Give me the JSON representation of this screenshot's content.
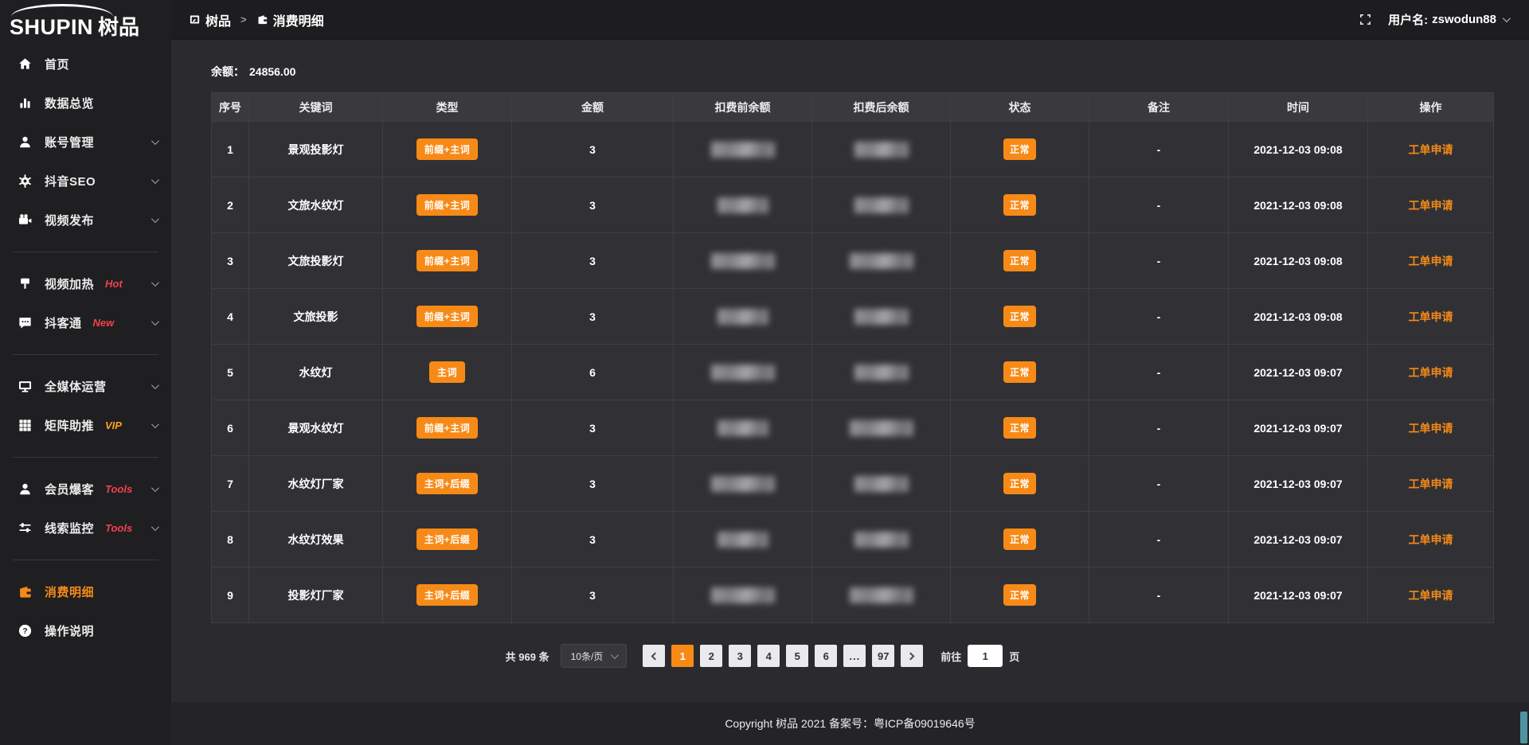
{
  "app": {
    "logo_text": "SHUPIN",
    "logo_cn": "树品"
  },
  "topbar": {
    "breadcrumb": [
      {
        "label": "树品",
        "icon": "dashboard"
      },
      {
        "label": "消费明细",
        "icon": "wallet"
      }
    ],
    "separator": ">",
    "fullscreen_icon": "fullscreen",
    "username_label": "用户名:",
    "username": "zswodun88"
  },
  "sidebar": {
    "items": [
      {
        "id": "home",
        "label": "首页",
        "icon": "home"
      },
      {
        "id": "data-overview",
        "label": "数据总览",
        "icon": "chart"
      },
      {
        "id": "account-manage",
        "label": "账号管理",
        "icon": "user",
        "chevron": true
      },
      {
        "id": "douyin-seo",
        "label": "抖音SEO",
        "icon": "gear",
        "chevron": true
      },
      {
        "id": "video-publish",
        "label": "视频发布",
        "icon": "video",
        "chevron": true
      },
      {
        "divider": true
      },
      {
        "id": "video-heat",
        "label": "视频加热",
        "icon": "plug",
        "badge": "Hot",
        "badge_color": "#f4404a",
        "chevron": true
      },
      {
        "id": "doukertong",
        "label": "抖客通",
        "icon": "chat",
        "badge": "New",
        "badge_color": "#f4404a",
        "chevron": true
      },
      {
        "divider": true
      },
      {
        "id": "media-operation",
        "label": "全媒体运营",
        "icon": "monitor",
        "chevron": true
      },
      {
        "id": "matrix-boost",
        "label": "矩阵助推",
        "icon": "grid",
        "badge": "VIP",
        "badge_color": "#f7a21b",
        "chevron": true
      },
      {
        "divider": true
      },
      {
        "id": "member-baoke",
        "label": "会员爆客",
        "icon": "user",
        "badge": "Tools",
        "badge_color": "#f4404a",
        "chevron": true
      },
      {
        "id": "lead-monitor",
        "label": "线索监控",
        "icon": "sliders",
        "badge": "Tools",
        "badge_color": "#f4404a",
        "chevron": true
      },
      {
        "divider": true
      },
      {
        "id": "consume-detail",
        "label": "消费明细",
        "icon": "wallet",
        "active": true
      },
      {
        "id": "operation-guide",
        "label": "操作说明",
        "icon": "question"
      }
    ]
  },
  "main": {
    "balance_label": "余额：",
    "balance_value": "24856.00",
    "table": {
      "columns": [
        "序号",
        "关键词",
        "类型",
        "金额",
        "扣费前余额",
        "扣费后余额",
        "状态",
        "备注",
        "时间",
        "操作"
      ],
      "masked_columns": [
        "扣费前余额",
        "扣费后余额"
      ],
      "rows": [
        {
          "no": "1",
          "keyword": "景观投影灯",
          "type": "前缀+主词",
          "amount": "3",
          "status": "正常",
          "remark": "-",
          "time": "2021-12-03 09:08",
          "action": "工单申请"
        },
        {
          "no": "2",
          "keyword": "文旅水纹灯",
          "type": "前缀+主词",
          "amount": "3",
          "status": "正常",
          "remark": "-",
          "time": "2021-12-03 09:08",
          "action": "工单申请"
        },
        {
          "no": "3",
          "keyword": "文旅投影灯",
          "type": "前缀+主词",
          "amount": "3",
          "status": "正常",
          "remark": "-",
          "time": "2021-12-03 09:08",
          "action": "工单申请"
        },
        {
          "no": "4",
          "keyword": "文旅投影",
          "type": "前缀+主词",
          "amount": "3",
          "status": "正常",
          "remark": "-",
          "time": "2021-12-03 09:08",
          "action": "工单申请"
        },
        {
          "no": "5",
          "keyword": "水纹灯",
          "type": "主词",
          "amount": "6",
          "status": "正常",
          "remark": "-",
          "time": "2021-12-03 09:07",
          "action": "工单申请"
        },
        {
          "no": "6",
          "keyword": "景观水纹灯",
          "type": "前缀+主词",
          "amount": "3",
          "status": "正常",
          "remark": "-",
          "time": "2021-12-03 09:07",
          "action": "工单申请"
        },
        {
          "no": "7",
          "keyword": "水纹灯厂家",
          "type": "主词+后缀",
          "amount": "3",
          "status": "正常",
          "remark": "-",
          "time": "2021-12-03 09:07",
          "action": "工单申请"
        },
        {
          "no": "8",
          "keyword": "水纹灯效果",
          "type": "主词+后缀",
          "amount": "3",
          "status": "正常",
          "remark": "-",
          "time": "2021-12-03 09:07",
          "action": "工单申请"
        },
        {
          "no": "9",
          "keyword": "投影灯厂家",
          "type": "主词+后缀",
          "amount": "3",
          "status": "正常",
          "remark": "-",
          "time": "2021-12-03 09:07",
          "action": "工单申请"
        }
      ]
    },
    "pagination": {
      "total": "共 969 条",
      "page_size": "10条/页",
      "pages": [
        "1",
        "2",
        "3",
        "4",
        "5",
        "6",
        "...",
        "97"
      ],
      "active_page": "1",
      "goto_label": "前往",
      "goto_value": "1",
      "goto_suffix": "页"
    }
  },
  "footer": {
    "copyright": "Copyright 树品 2021 备案号：粤ICP备09019646号"
  },
  "colors": {
    "accent": "#f78a17",
    "hot": "#f4404a",
    "vip": "#f7a21b",
    "status_normal": "#f78a17"
  }
}
